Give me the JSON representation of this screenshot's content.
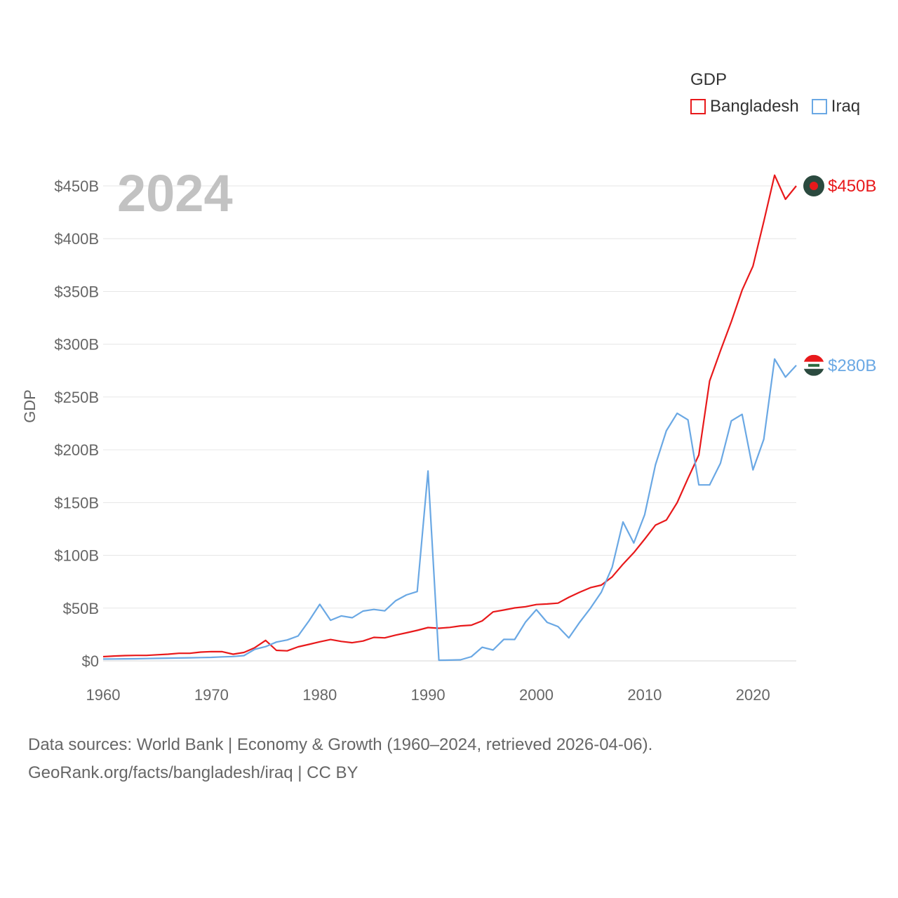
{
  "legend": {
    "title": "GDP",
    "items": [
      {
        "name": "Bangladesh",
        "color": "#e8191b"
      },
      {
        "name": "Iraq",
        "color": "#6aa8e4"
      }
    ]
  },
  "footer": {
    "line1": "Data sources: World Bank | Economy & Growth (1960–2024, retrieved 2026-04-06).",
    "line2": "GeoRank.org/facts/bangladesh/iraq | CC BY"
  },
  "chart_data": {
    "type": "line",
    "title": "GDP",
    "ylabel": "GDP",
    "xlabel": "",
    "year_label": "2024",
    "xlim": [
      1960,
      2024
    ],
    "ylim": [
      0,
      450
    ],
    "x_ticks": [
      1960,
      1970,
      1980,
      1990,
      2000,
      2010,
      2020
    ],
    "y_ticks": [
      0,
      50,
      100,
      150,
      200,
      250,
      300,
      350,
      400,
      450
    ],
    "y_tick_labels": [
      "$0",
      "$50B",
      "$100B",
      "$150B",
      "$200B",
      "$250B",
      "$300B",
      "$350B",
      "$400B",
      "$450B"
    ],
    "grid": true,
    "x": [
      1960,
      1961,
      1962,
      1963,
      1964,
      1965,
      1966,
      1967,
      1968,
      1969,
      1970,
      1971,
      1972,
      1973,
      1974,
      1975,
      1976,
      1977,
      1978,
      1979,
      1980,
      1981,
      1982,
      1983,
      1984,
      1985,
      1986,
      1987,
      1988,
      1989,
      1990,
      1991,
      1992,
      1993,
      1994,
      1995,
      1996,
      1997,
      1998,
      1999,
      2000,
      2001,
      2002,
      2003,
      2004,
      2005,
      2006,
      2007,
      2008,
      2009,
      2010,
      2011,
      2012,
      2013,
      2014,
      2015,
      2016,
      2017,
      2018,
      2019,
      2020,
      2021,
      2022,
      2023,
      2024
    ],
    "series": [
      {
        "name": "Bangladesh",
        "color": "#e8191b",
        "end_label": "$450B",
        "values": [
          4,
          4.6,
          5,
          5.2,
          5.2,
          5.8,
          6.3,
          7.2,
          7.2,
          8.3,
          8.8,
          8.7,
          6.3,
          8,
          12.5,
          19.4,
          10,
          9.5,
          13.3,
          15.6,
          18.1,
          20.2,
          18.4,
          17.2,
          18.8,
          22.3,
          21.8,
          24.4,
          26.6,
          28.9,
          31.6,
          30.9,
          31.7,
          33.2,
          33.8,
          37.9,
          46.4,
          48.2,
          50.2,
          51.3,
          53.4,
          53.9,
          54.7,
          60.2,
          65.1,
          69.4,
          71.8,
          79.6,
          91.6,
          102.5,
          115.3,
          128.6,
          133.4,
          149.9,
          172.9,
          195.1,
          265.2,
          293.8,
          321.4,
          351.2,
          374,
          416.3,
          460.2,
          437.4,
          450
        ]
      },
      {
        "name": "Iraq",
        "color": "#6aa8e4",
        "end_label": "$280B",
        "values": [
          1.7,
          1.8,
          1.9,
          2,
          2.2,
          2.4,
          2.6,
          2.7,
          2.9,
          3.1,
          3.3,
          3.8,
          4.1,
          5,
          11,
          13.5,
          17.8,
          19.8,
          23.6,
          37.8,
          53.6,
          38.5,
          42.6,
          40.9,
          47.2,
          48.7,
          47.4,
          56.9,
          62.5,
          65.7,
          179.9,
          0.6,
          0.7,
          1,
          4,
          12.9,
          10.3,
          20.4,
          20.3,
          36.8,
          48.5,
          36.5,
          32.5,
          21.8,
          36.6,
          50,
          65.1,
          88.8,
          131.6,
          111.7,
          138.5,
          185.8,
          218,
          234.6,
          228.4,
          166.8,
          166.7,
          187.2,
          227.4,
          233.6,
          180.9,
          210,
          286,
          268.9,
          280
        ]
      }
    ]
  }
}
